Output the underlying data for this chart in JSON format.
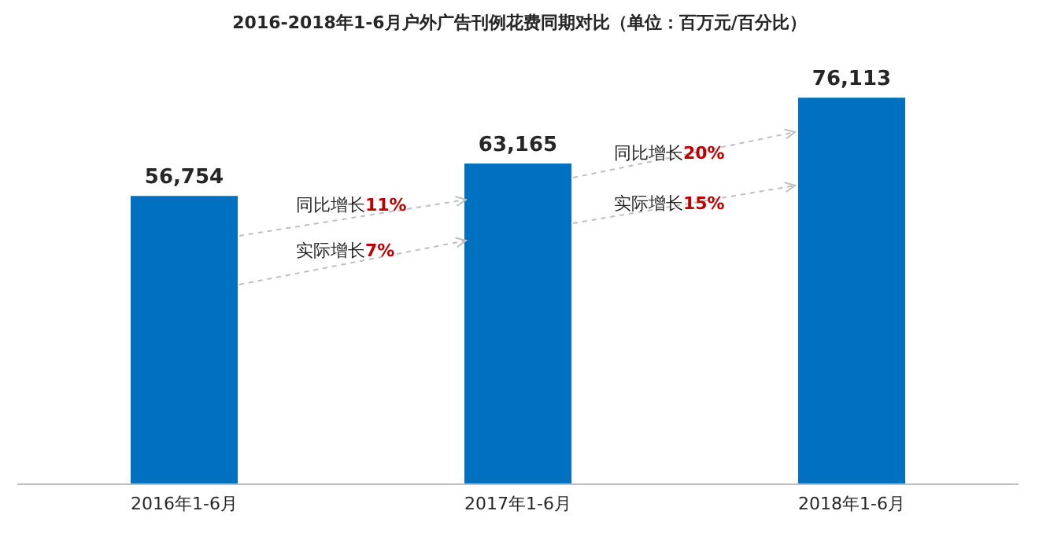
{
  "chart_data": {
    "type": "bar",
    "title": "2016-2018年1-6月户外广告刊例花费同期对比（单位：百万元/百分比）",
    "categories": [
      "2016年1-6月",
      "2017年1-6月",
      "2018年1-6月"
    ],
    "values": [
      56754,
      63165,
      76113
    ],
    "value_labels": [
      "56,754",
      "63,165",
      "76,113"
    ],
    "color": "#0070c0",
    "legend": false,
    "grid": false,
    "annotations": [
      "同比增长11%",
      "实际增长7%",
      "同比增长20%",
      "实际增长15%"
    ]
  }
}
